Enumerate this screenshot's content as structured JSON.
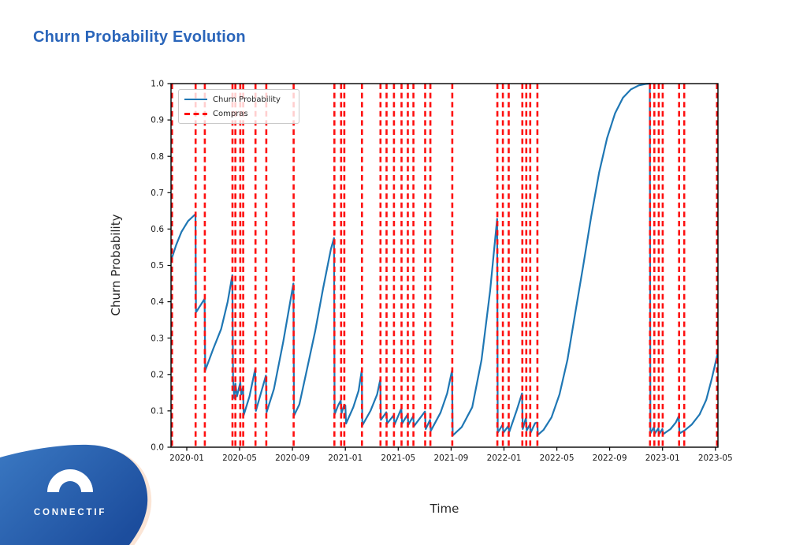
{
  "header": {
    "title": "Churn Probability Evolution"
  },
  "watermark": {
    "brand": "CONNECTIF"
  },
  "colors": {
    "title_blue": "#2a65ba",
    "line_blue": "#1f77b4",
    "compras_red": "#fe1010",
    "axis_black": "#000000",
    "tick_text": "#1a1a1a",
    "logo_blue_light": "#3a78c2",
    "logo_blue_dark": "#1c4d9d",
    "logo_peach": "#fbe5d6"
  },
  "chart_data": {
    "type": "line",
    "title": "Churn Probability Evolution",
    "xlabel": "Time",
    "ylabel": "Churn Probability",
    "x_unit": "months since 2020-01",
    "xlim": [
      -1.19,
      40.19
    ],
    "ylim": [
      0.0,
      1.0
    ],
    "grid": false,
    "x_ticks": [
      {
        "m": 0,
        "label": "2020-01"
      },
      {
        "m": 4,
        "label": "2020-05"
      },
      {
        "m": 8,
        "label": "2020-09"
      },
      {
        "m": 12,
        "label": "2021-01"
      },
      {
        "m": 16,
        "label": "2021-05"
      },
      {
        "m": 20,
        "label": "2021-09"
      },
      {
        "m": 24,
        "label": "2022-01"
      },
      {
        "m": 28,
        "label": "2022-05"
      },
      {
        "m": 32,
        "label": "2022-09"
      },
      {
        "m": 36,
        "label": "2023-01"
      },
      {
        "m": 40,
        "label": "2023-05"
      }
    ],
    "y_ticks": [
      0.0,
      0.1,
      0.2,
      0.3,
      0.4,
      0.5,
      0.6,
      0.7,
      0.8,
      0.9,
      1.0
    ],
    "legend": {
      "position": "upper-left",
      "entries": [
        {
          "label": "Churn Probability",
          "color": "#1f77b4",
          "style": "solid"
        },
        {
          "label": "Compras",
          "color": "#fe1010",
          "style": "dashed"
        }
      ]
    },
    "series": [
      {
        "name": "Churn Probability",
        "type": "line",
        "color": "#1f77b4",
        "points": [
          [
            -1.19,
            0.513
          ],
          [
            -0.8,
            0.556
          ],
          [
            -0.4,
            0.592
          ],
          [
            0.1,
            0.622
          ],
          [
            0.66,
            0.641
          ],
          [
            0.7,
            0.371
          ],
          [
            1.35,
            0.408
          ],
          [
            1.4,
            0.211
          ],
          [
            2.0,
            0.27
          ],
          [
            2.6,
            0.325
          ],
          [
            3.1,
            0.4
          ],
          [
            3.45,
            0.473
          ],
          [
            3.5,
            0.19
          ],
          [
            3.6,
            0.135
          ],
          [
            3.68,
            0.175
          ],
          [
            3.8,
            0.14
          ],
          [
            4.05,
            0.178
          ],
          [
            4.12,
            0.145
          ],
          [
            4.26,
            0.165
          ],
          [
            4.31,
            0.088
          ],
          [
            4.75,
            0.14
          ],
          [
            5.18,
            0.215
          ],
          [
            5.23,
            0.1
          ],
          [
            5.99,
            0.197
          ],
          [
            6.04,
            0.096
          ],
          [
            6.6,
            0.16
          ],
          [
            7.3,
            0.29
          ],
          [
            8.07,
            0.45
          ],
          [
            8.12,
            0.087
          ],
          [
            8.52,
            0.118
          ],
          [
            9.12,
            0.218
          ],
          [
            9.72,
            0.32
          ],
          [
            10.31,
            0.436
          ],
          [
            10.91,
            0.545
          ],
          [
            11.14,
            0.575
          ],
          [
            11.19,
            0.09
          ],
          [
            11.45,
            0.115
          ],
          [
            11.65,
            0.128
          ],
          [
            11.71,
            0.093
          ],
          [
            11.9,
            0.115
          ],
          [
            12.0,
            0.115
          ],
          [
            12.05,
            0.065
          ],
          [
            12.6,
            0.11
          ],
          [
            13.0,
            0.155
          ],
          [
            13.24,
            0.211
          ],
          [
            13.29,
            0.06
          ],
          [
            13.9,
            0.1
          ],
          [
            14.4,
            0.145
          ],
          [
            14.64,
            0.186
          ],
          [
            14.69,
            0.075
          ],
          [
            15.1,
            0.096
          ],
          [
            15.16,
            0.065
          ],
          [
            15.66,
            0.088
          ],
          [
            15.72,
            0.062
          ],
          [
            16.23,
            0.106
          ],
          [
            16.29,
            0.065
          ],
          [
            16.71,
            0.09
          ],
          [
            16.77,
            0.062
          ],
          [
            17.13,
            0.085
          ],
          [
            17.19,
            0.058
          ],
          [
            18.02,
            0.098
          ],
          [
            18.08,
            0.05
          ],
          [
            18.41,
            0.075
          ],
          [
            18.46,
            0.045
          ],
          [
            19.2,
            0.095
          ],
          [
            19.7,
            0.148
          ],
          [
            20.07,
            0.211
          ],
          [
            20.12,
            0.032
          ],
          [
            20.8,
            0.055
          ],
          [
            21.6,
            0.11
          ],
          [
            22.3,
            0.24
          ],
          [
            22.95,
            0.43
          ],
          [
            23.48,
            0.628
          ],
          [
            23.53,
            0.04
          ],
          [
            23.9,
            0.062
          ],
          [
            23.96,
            0.04
          ],
          [
            24.32,
            0.058
          ],
          [
            24.4,
            0.042
          ],
          [
            24.95,
            0.1
          ],
          [
            25.37,
            0.148
          ],
          [
            25.42,
            0.05
          ],
          [
            25.66,
            0.08
          ],
          [
            25.72,
            0.046
          ],
          [
            25.96,
            0.062
          ],
          [
            26.02,
            0.04
          ],
          [
            26.35,
            0.066
          ],
          [
            26.51,
            0.068
          ],
          [
            26.57,
            0.034
          ],
          [
            27.0,
            0.048
          ],
          [
            27.6,
            0.082
          ],
          [
            28.2,
            0.145
          ],
          [
            28.8,
            0.24
          ],
          [
            29.4,
            0.37
          ],
          [
            30.0,
            0.5
          ],
          [
            30.6,
            0.635
          ],
          [
            31.2,
            0.755
          ],
          [
            31.8,
            0.85
          ],
          [
            32.4,
            0.918
          ],
          [
            33.0,
            0.961
          ],
          [
            33.6,
            0.984
          ],
          [
            34.2,
            0.995
          ],
          [
            34.7,
            0.999
          ],
          [
            35.03,
            1.0
          ],
          [
            35.08,
            0.038
          ],
          [
            35.35,
            0.055
          ],
          [
            35.41,
            0.037
          ],
          [
            35.68,
            0.052
          ],
          [
            35.74,
            0.036
          ],
          [
            35.98,
            0.05
          ],
          [
            36.05,
            0.036
          ],
          [
            36.6,
            0.05
          ],
          [
            37.0,
            0.068
          ],
          [
            37.22,
            0.085
          ],
          [
            37.28,
            0.038
          ],
          [
            37.66,
            0.046
          ],
          [
            38.2,
            0.062
          ],
          [
            38.8,
            0.09
          ],
          [
            39.3,
            0.13
          ],
          [
            39.7,
            0.185
          ],
          [
            40.05,
            0.24
          ],
          [
            40.19,
            0.262
          ]
        ]
      },
      {
        "name": "Compras",
        "type": "vlines",
        "color": "#fe1010",
        "x": [
          -1.11,
          0.67,
          1.37,
          3.46,
          3.68,
          4.05,
          4.27,
          5.2,
          6.02,
          8.09,
          11.17,
          11.68,
          11.92,
          13.26,
          14.66,
          15.12,
          15.68,
          16.25,
          16.73,
          17.15,
          18.04,
          18.43,
          20.09,
          23.5,
          23.92,
          24.36,
          25.39,
          25.69,
          25.99,
          26.53,
          35.05,
          35.38,
          35.71,
          36.01,
          37.25,
          37.64,
          40.12
        ]
      }
    ]
  }
}
